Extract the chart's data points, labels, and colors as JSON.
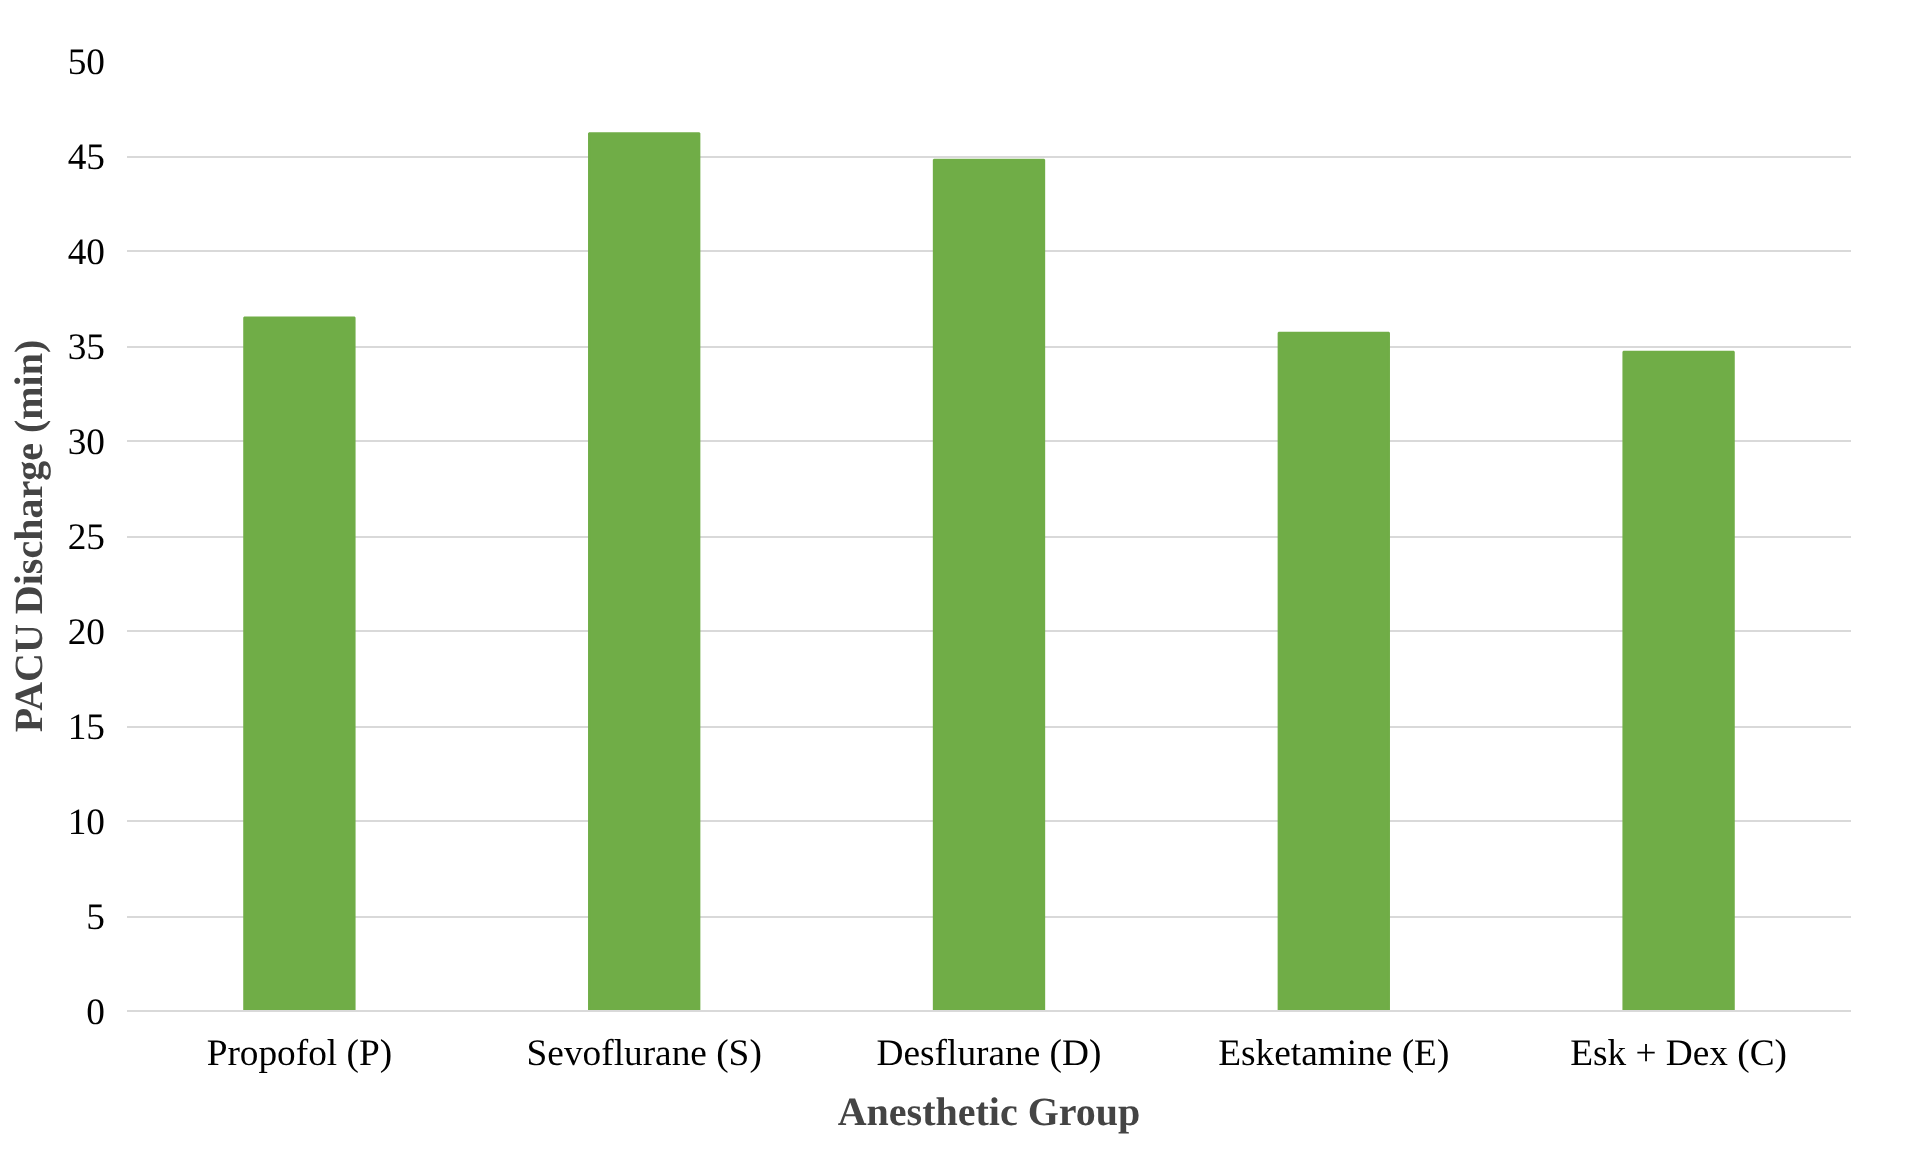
{
  "chart_data": {
    "type": "bar",
    "xlabel": "Anesthetic Group",
    "ylabel": "PACU Discharge (min)",
    "categories": [
      "Propofol (P)",
      "Sevoflurane (S)",
      "Desflurane (D)",
      "Esketamine (E)",
      "Esk + Dex (C)"
    ],
    "values": [
      36.5,
      46.2,
      44.8,
      35.7,
      34.7
    ],
    "color": "#70ad47",
    "ylim": [
      0,
      50
    ],
    "yticks": [
      0,
      5,
      10,
      15,
      20,
      25,
      30,
      35,
      40,
      45,
      50
    ],
    "grid": "y"
  }
}
